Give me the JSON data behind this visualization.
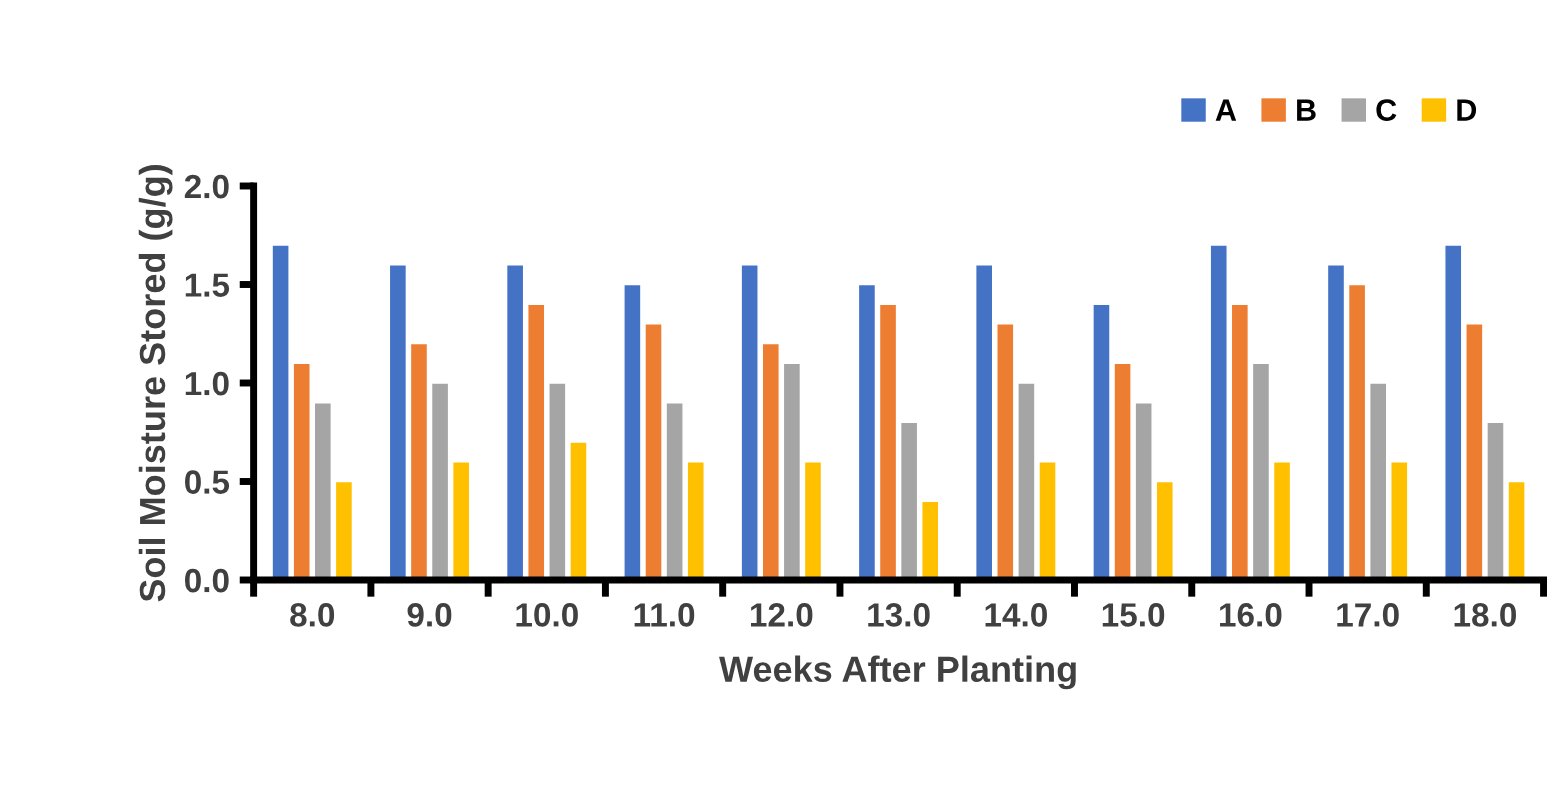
{
  "chart_data": {
    "type": "bar",
    "xlabel": "Weeks After Planting",
    "ylabel": "Soil Moisture Stored (g/g)",
    "categories": [
      "8.0",
      "9.0",
      "10.0",
      "11.0",
      "12.0",
      "13.0",
      "14.0",
      "15.0",
      "16.0",
      "17.0",
      "18.0"
    ],
    "series": [
      {
        "name": "A",
        "color": "#4472c4",
        "values": [
          1.7,
          1.6,
          1.6,
          1.5,
          1.6,
          1.5,
          1.6,
          1.4,
          1.7,
          1.6,
          1.7
        ]
      },
      {
        "name": "B",
        "color": "#ed7d31",
        "values": [
          1.1,
          1.2,
          1.4,
          1.3,
          1.2,
          1.4,
          1.3,
          1.1,
          1.4,
          1.5,
          1.3
        ]
      },
      {
        "name": "C",
        "color": "#a5a5a5",
        "values": [
          0.9,
          1.0,
          1.0,
          0.9,
          1.1,
          0.8,
          1.0,
          0.9,
          1.1,
          1.0,
          0.8
        ]
      },
      {
        "name": "D",
        "color": "#ffc000",
        "values": [
          0.5,
          0.6,
          0.7,
          0.6,
          0.6,
          0.4,
          0.6,
          0.5,
          0.6,
          0.6,
          0.5
        ]
      }
    ],
    "ylim": [
      0,
      2.0
    ],
    "yticks": [
      {
        "value": 0,
        "label": "0.0"
      },
      {
        "value": 0.5,
        "label": "0.5"
      },
      {
        "value": 1.0,
        "label": "1.0"
      },
      {
        "value": 1.5,
        "label": "1.5"
      },
      {
        "value": 2.0,
        "label": "2.0"
      }
    ],
    "grid": false,
    "legend": "top right"
  }
}
